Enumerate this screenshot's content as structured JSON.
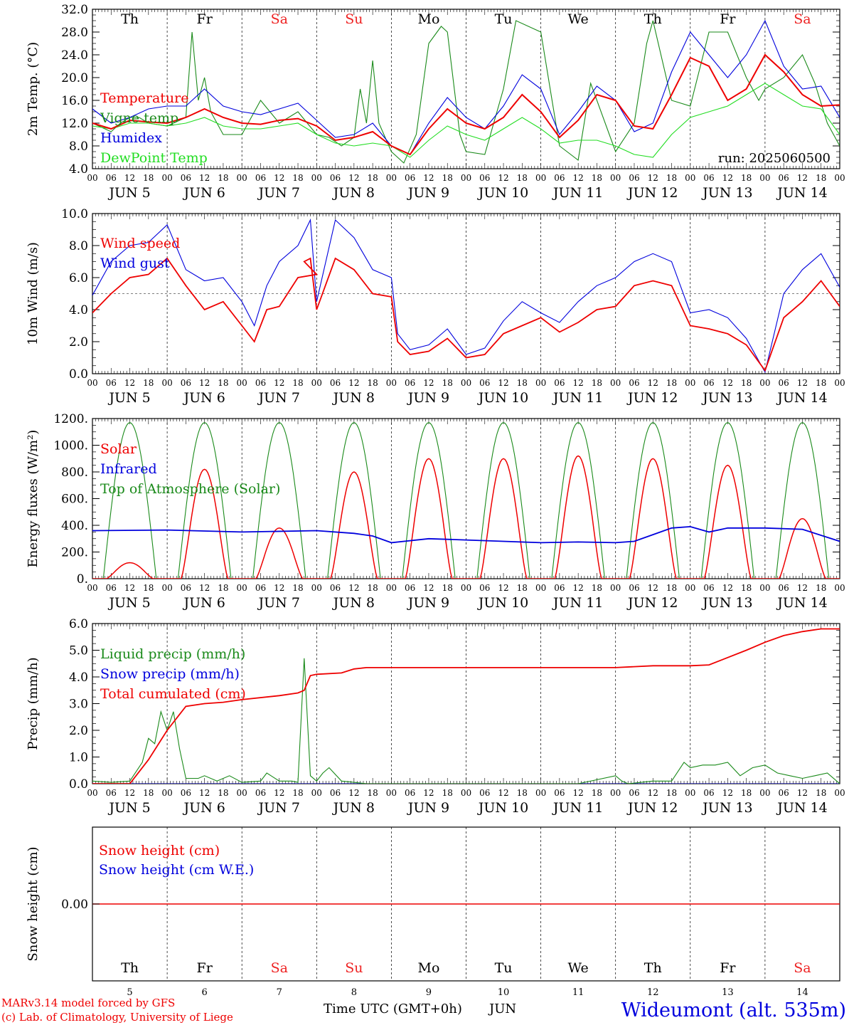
{
  "footer": {
    "model": "MARv3.14 model forced by GFS",
    "copyright": "(c) Lab. of Climatology, University of Liege",
    "xlabel": "Time UTC (GMT+0h)",
    "month": "JUN",
    "station": "Wideumont (alt. 535m)"
  },
  "colors": {
    "red": "#ee0000",
    "blue": "#0000dd",
    "green": "#1a8a1a",
    "lightgreen": "#22dd22",
    "weekend": "#ee2222"
  },
  "days": [
    {
      "abbr": "Th",
      "date": "JUN  5",
      "num": "5",
      "weekend": false
    },
    {
      "abbr": "Fr",
      "date": "JUN  6",
      "num": "6",
      "weekend": false
    },
    {
      "abbr": "Sa",
      "date": "JUN  7",
      "num": "7",
      "weekend": true
    },
    {
      "abbr": "Su",
      "date": "JUN  8",
      "num": "8",
      "weekend": true
    },
    {
      "abbr": "Mo",
      "date": "JUN  9",
      "num": "9",
      "weekend": false
    },
    {
      "abbr": "Tu",
      "date": "JUN 10",
      "num": "10",
      "weekend": false
    },
    {
      "abbr": "We",
      "date": "JUN 11",
      "num": "11",
      "weekend": false
    },
    {
      "abbr": "Th",
      "date": "JUN 12",
      "num": "12",
      "weekend": false
    },
    {
      "abbr": "Fr",
      "date": "JUN 13",
      "num": "13",
      "weekend": false
    },
    {
      "abbr": "Sa",
      "date": "JUN 14",
      "num": "14",
      "weekend": true
    }
  ],
  "hour_ticks": [
    "00",
    "06",
    "12",
    "18"
  ],
  "chart_data": [
    {
      "type": "line",
      "ylabel": "2m Temp. (°C)",
      "ylim": [
        4,
        32
      ],
      "yticks": [
        "4.0",
        "8.0",
        "12.0",
        "16.0",
        "20.0",
        "24.0",
        "28.0",
        "32.0"
      ],
      "annotation": "run: 2025060500",
      "x_unit": "hours since 2025-06-05 00 UTC",
      "series": [
        {
          "name": "Temperature",
          "color": "red",
          "x": [
            0,
            6,
            12,
            18,
            24,
            30,
            36,
            42,
            48,
            54,
            60,
            66,
            72,
            78,
            84,
            90,
            96,
            102,
            108,
            114,
            120,
            126,
            132,
            138,
            144,
            150,
            156,
            162,
            168,
            174,
            180,
            186,
            192,
            198,
            204,
            210,
            216,
            222,
            228,
            234,
            240
          ],
          "y": [
            12,
            11,
            12.5,
            12.2,
            12,
            13,
            14.5,
            13,
            12,
            11.8,
            12.5,
            12.8,
            11.5,
            9,
            9.5,
            10.5,
            8,
            6.5,
            11,
            14.5,
            12,
            11,
            13,
            17,
            14,
            9.5,
            12.5,
            17,
            16,
            11.5,
            11,
            17,
            23.5,
            22,
            16,
            18,
            24,
            21,
            17,
            15,
            15.2
          ]
        },
        {
          "name": "Vigne temp",
          "color": "green",
          "x": [
            0,
            6,
            9,
            12,
            15,
            18,
            24,
            30,
            32,
            34,
            36,
            38,
            42,
            48,
            54,
            60,
            66,
            72,
            76,
            80,
            84,
            86,
            88,
            90,
            92,
            96,
            100,
            104,
            108,
            112,
            114,
            118,
            120,
            126,
            132,
            136,
            144,
            150,
            156,
            160,
            168,
            174,
            178,
            180,
            186,
            192,
            198,
            204,
            210,
            214,
            216,
            222,
            228,
            232,
            236,
            240
          ],
          "y": [
            12,
            10.5,
            12,
            13,
            13,
            12,
            11.5,
            13,
            28,
            16,
            20,
            14,
            10,
            10,
            16,
            12,
            14,
            10,
            9.5,
            8,
            9.5,
            18,
            12,
            23,
            12,
            7,
            5,
            10,
            26,
            29,
            28,
            10,
            7,
            6.5,
            18,
            30,
            28,
            8,
            5.5,
            19,
            7,
            12,
            26,
            30,
            16,
            15,
            28,
            28,
            20,
            16,
            18,
            20,
            24,
            19,
            12,
            8
          ]
        },
        {
          "name": "Humidex",
          "color": "blue",
          "x": [
            0,
            6,
            12,
            18,
            24,
            30,
            36,
            42,
            48,
            54,
            60,
            66,
            72,
            78,
            84,
            90,
            96,
            102,
            108,
            114,
            120,
            126,
            132,
            138,
            144,
            150,
            156,
            162,
            168,
            174,
            180,
            186,
            192,
            198,
            204,
            210,
            216,
            222,
            228,
            234,
            240
          ],
          "y": [
            14.5,
            12,
            13,
            14.5,
            15,
            15,
            18,
            15,
            14,
            13.5,
            14.5,
            15.5,
            12.5,
            9.5,
            10,
            12,
            8,
            6.5,
            12,
            16.5,
            13,
            11,
            15,
            20.5,
            18,
            10,
            14,
            18.5,
            16,
            10.5,
            12,
            21,
            28,
            24,
            20,
            24,
            30,
            22,
            18,
            18.5,
            13
          ]
        },
        {
          "name": "DewPoint Temp",
          "color": "lightgreen",
          "x": [
            0,
            6,
            12,
            18,
            24,
            30,
            36,
            42,
            48,
            54,
            60,
            66,
            72,
            78,
            84,
            90,
            96,
            102,
            108,
            114,
            120,
            126,
            132,
            138,
            144,
            150,
            156,
            162,
            168,
            174,
            180,
            186,
            192,
            198,
            204,
            210,
            216,
            222,
            228,
            234,
            240
          ],
          "y": [
            11.5,
            11,
            12,
            12,
            11.5,
            12,
            13,
            11.5,
            11,
            11,
            11.5,
            12,
            10,
            8.5,
            8,
            8.5,
            8,
            6,
            9,
            11.5,
            10,
            9,
            11,
            13,
            11,
            8.5,
            9,
            9,
            8,
            6.5,
            6,
            10,
            13,
            14,
            15,
            17,
            19,
            17,
            15,
            14.5,
            10
          ]
        }
      ]
    },
    {
      "type": "line",
      "ylabel": "10m Wind (m/s)",
      "ylim": [
        0,
        10
      ],
      "yticks": [
        "0.0",
        "2.0",
        "4.0",
        "6.0",
        "8.0",
        "10.0"
      ],
      "reference_line": 5,
      "x_unit": "hours since 2025-06-05 00 UTC",
      "series": [
        {
          "name": "Wind speed",
          "color": "red",
          "x": [
            0,
            6,
            12,
            18,
            24,
            30,
            36,
            42,
            48,
            52,
            56,
            60,
            66,
            72,
            68,
            70,
            72,
            78,
            84,
            90,
            96,
            98,
            102,
            108,
            114,
            120,
            126,
            132,
            138,
            144,
            150,
            156,
            162,
            168,
            174,
            180,
            186,
            192,
            198,
            204,
            210,
            216,
            222,
            228,
            234,
            240
          ],
          "y": [
            3.8,
            5,
            6,
            6.2,
            7.2,
            5.5,
            4,
            4.5,
            3,
            2,
            4,
            4.2,
            6,
            6.2,
            7,
            7.2,
            4,
            7.2,
            6.5,
            5,
            4.8,
            2,
            1.2,
            1.4,
            2.2,
            1,
            1.2,
            2.5,
            3,
            3.5,
            2.6,
            3.2,
            4,
            4.2,
            5.5,
            5.8,
            5.5,
            3,
            2.8,
            2.5,
            1.8,
            0.2,
            3.5,
            4.5,
            5.8,
            4.2
          ],
          "note": "approximate"
        },
        {
          "name": "Wind gust",
          "color": "blue",
          "x": [
            0,
            6,
            12,
            18,
            24,
            30,
            36,
            42,
            48,
            52,
            56,
            60,
            66,
            70,
            72,
            78,
            84,
            90,
            96,
            98,
            102,
            108,
            114,
            120,
            126,
            132,
            138,
            144,
            150,
            156,
            162,
            168,
            174,
            180,
            186,
            192,
            198,
            204,
            210,
            216,
            222,
            228,
            234,
            240
          ],
          "y": [
            4.9,
            7,
            8,
            8.2,
            9.3,
            6.5,
            5.8,
            6,
            4.5,
            3,
            5.5,
            7,
            8,
            9.6,
            4.5,
            9.6,
            8.5,
            6.5,
            6,
            2.5,
            1.5,
            1.8,
            2.8,
            1.2,
            1.6,
            3.3,
            4.5,
            3.8,
            3.2,
            4.5,
            5.5,
            6,
            7,
            7.5,
            7,
            3.8,
            4,
            3.5,
            2.2,
            0.1,
            5,
            6.5,
            7.5,
            5.4
          ]
        }
      ]
    },
    {
      "type": "line",
      "ylabel": "Energy fluxes (W/m²)",
      "ylim": [
        0,
        1200
      ],
      "yticks": [
        "0.",
        "200.",
        "400.",
        "600.",
        "800.",
        "1000.",
        "1200."
      ],
      "x_unit": "hours since 2025-06-05 00 UTC",
      "series": [
        {
          "name": "Solar",
          "color": "red",
          "daily_peaks": [
            120,
            820,
            380,
            800,
            900,
            900,
            920,
            900,
            850,
            450
          ]
        },
        {
          "name": "Infrared",
          "color": "blue",
          "x": [
            0,
            24,
            48,
            72,
            84,
            90,
            96,
            108,
            120,
            132,
            144,
            156,
            168,
            174,
            180,
            186,
            192,
            198,
            204,
            216,
            228,
            240
          ],
          "y": [
            360,
            365,
            350,
            360,
            340,
            320,
            270,
            300,
            290,
            280,
            270,
            275,
            270,
            280,
            330,
            380,
            390,
            350,
            380,
            380,
            370,
            280
          ]
        },
        {
          "name": "Top of Atmosphere (Solar)",
          "color": "green",
          "daily_peak": 1170
        }
      ]
    },
    {
      "type": "line",
      "ylabel": "Precip (mm/h)",
      "ylim": [
        0,
        6
      ],
      "yticks": [
        "0.0",
        "1.0",
        "2.0",
        "3.0",
        "4.0",
        "5.0",
        "6.0"
      ],
      "x_unit": "hours since 2025-06-05 00 UTC",
      "series": [
        {
          "name": "Liquid precip (mm/h)",
          "color": "green",
          "x": [
            0,
            6,
            12,
            16,
            18,
            20,
            22,
            24,
            26,
            28,
            30,
            34,
            36,
            40,
            44,
            48,
            54,
            56,
            60,
            64,
            66,
            68,
            70,
            72,
            74,
            76,
            80,
            84,
            88,
            96,
            132,
            156,
            168,
            170,
            172,
            180,
            186,
            190,
            192,
            196,
            200,
            204,
            208,
            212,
            216,
            220,
            224,
            228,
            232,
            236,
            240
          ],
          "y": [
            0.1,
            0.05,
            0.1,
            0.8,
            1.7,
            1.5,
            2.7,
            2,
            2.7,
            1.3,
            0.2,
            0.2,
            0.3,
            0.1,
            0.3,
            0.05,
            0.1,
            0.4,
            0.1,
            0.1,
            0.05,
            4.7,
            0.3,
            0.1,
            0.4,
            0.6,
            0.1,
            0.05,
            0,
            0,
            0,
            0,
            0.3,
            0.1,
            0,
            0.1,
            0.1,
            0.8,
            0.6,
            0.7,
            0.7,
            0.8,
            0.3,
            0.6,
            0.7,
            0.4,
            0.3,
            0.2,
            0.3,
            0.4,
            0
          ]
        },
        {
          "name": "Snow precip (mm/h)",
          "color": "blue",
          "x": [
            0,
            240
          ],
          "y": [
            0,
            0
          ]
        },
        {
          "name": "Total cumulated (cm)",
          "color": "red",
          "x": [
            0,
            12,
            18,
            24,
            30,
            36,
            42,
            48,
            60,
            66,
            68,
            70,
            72,
            80,
            84,
            88,
            96,
            120,
            144,
            168,
            180,
            186,
            192,
            198,
            210,
            216,
            222,
            228,
            234,
            240
          ],
          "y": [
            0,
            0,
            0.9,
            2,
            2.9,
            3,
            3.05,
            3.15,
            3.3,
            3.4,
            3.5,
            4.05,
            4.1,
            4.15,
            4.3,
            4.35,
            4.35,
            4.35,
            4.35,
            4.35,
            4.42,
            4.42,
            4.42,
            4.45,
            5.0,
            5.3,
            5.55,
            5.7,
            5.8,
            5.8
          ]
        }
      ]
    },
    {
      "type": "line",
      "ylabel": "Snow height (cm)",
      "ytick": "0.00",
      "x_unit": "hours since 2025-06-05 00 UTC",
      "series": [
        {
          "name": "Snow height (cm)",
          "color": "red",
          "x": [
            0,
            240
          ],
          "y": [
            0,
            0
          ]
        },
        {
          "name": "Snow height (cm W.E.)",
          "color": "blue",
          "x": [
            0,
            240
          ],
          "y": [
            0,
            0
          ]
        }
      ]
    }
  ]
}
